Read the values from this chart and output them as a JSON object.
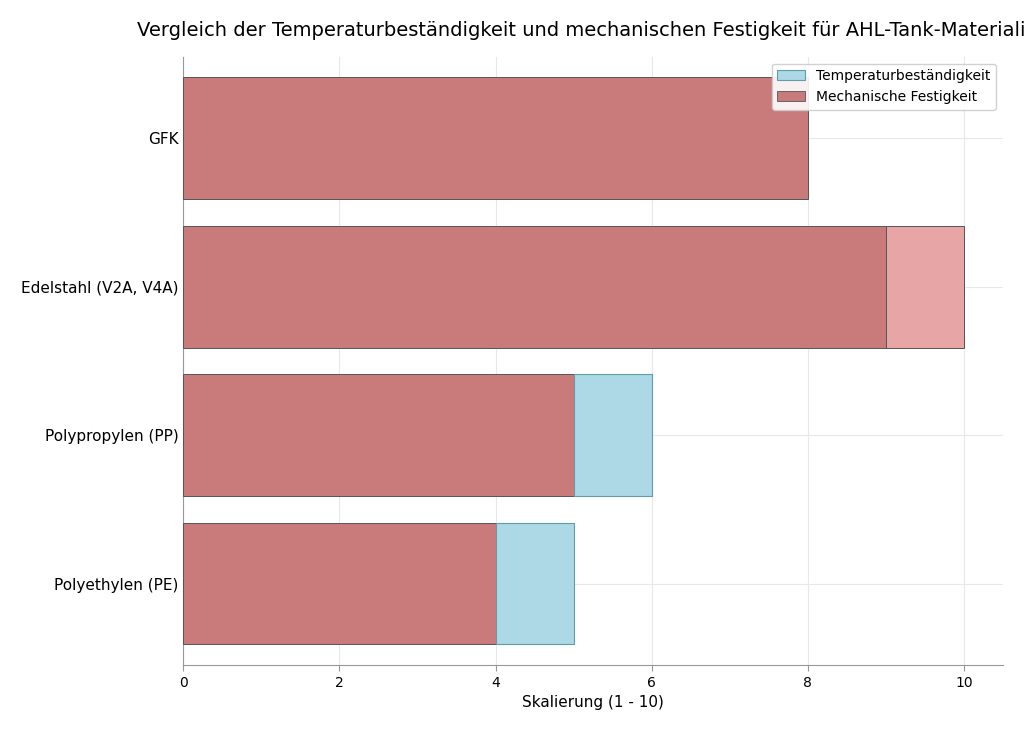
{
  "title": "Vergleich der Temperaturbeständigkeit und mechanischen Festigkeit für AHL-Tank-Materialien",
  "xlabel": "Skalierung (1 - 10)",
  "categories": [
    "Polyethylen (PE)",
    "Polypropylen (PP)",
    "Edelstahl (V2A, V4A)",
    "GFK"
  ],
  "mechanische_festigkeit": [
    4,
    5,
    9,
    8
  ],
  "temperaturbestaendigkeit": [
    5,
    6,
    10,
    8
  ],
  "color_mechanisch_dark": "#c97b7b",
  "color_mechanisch_light": "#e8a5a5",
  "color_temp": "#add8e6",
  "color_temp_edge": "#5f9ea8",
  "xlim": [
    0,
    10.5
  ],
  "xticks": [
    0,
    2,
    4,
    6,
    8,
    10
  ],
  "legend_temp": "Temperaturbeständigkeit",
  "legend_mech": "Mechanische Festigkeit",
  "background_color": "#ffffff",
  "bar_height": 0.82,
  "title_fontsize": 14,
  "label_fontsize": 11,
  "tick_fontsize": 10,
  "grid_color": "#e8e8e8",
  "edge_color": "#555555"
}
